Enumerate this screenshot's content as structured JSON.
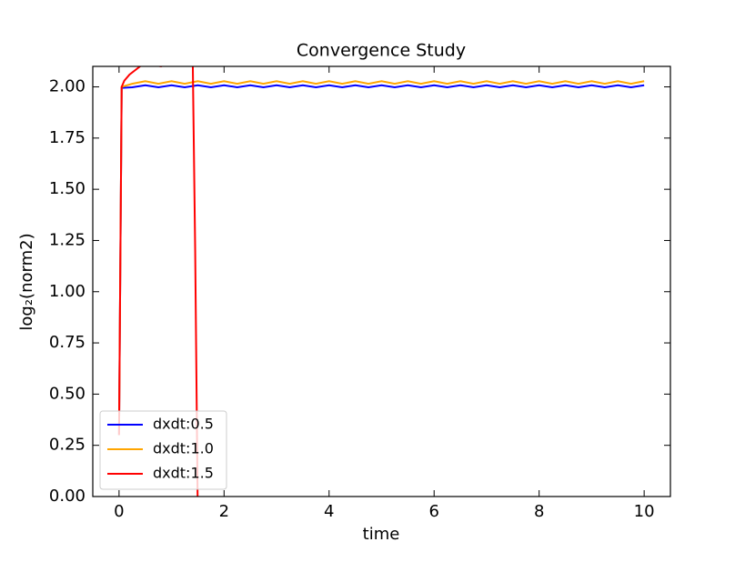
{
  "chart_data": {
    "type": "line",
    "title": "Convergence Study",
    "xlabel": "time",
    "ylabel": "log₂(norm2)",
    "xlim": [
      -0.5,
      10.5
    ],
    "ylim": [
      0,
      2.1
    ],
    "xticks": [
      0,
      2,
      4,
      6,
      8,
      10
    ],
    "yticks": [
      {
        "value": 0,
        "label": "0.00"
      },
      {
        "value": 0.25,
        "label": "0.25"
      },
      {
        "value": 0.5,
        "label": "0.50"
      },
      {
        "value": 0.75,
        "label": "0.75"
      },
      {
        "value": 1,
        "label": "1.00"
      },
      {
        "value": 1.25,
        "label": "1.25"
      },
      {
        "value": 1.5,
        "label": "1.50"
      },
      {
        "value": 1.75,
        "label": "1.75"
      },
      {
        "value": 2,
        "label": "2.00"
      }
    ],
    "legend": "lower left",
    "series": [
      {
        "name": "dxdt:0.5",
        "color": "#0000ff",
        "x": [
          0,
          0.05,
          0.25,
          0.5,
          0.75,
          1,
          1.25,
          1.5,
          1.75,
          2,
          2.25,
          2.5,
          2.75,
          3,
          3.25,
          3.5,
          3.75,
          4,
          4.25,
          4.5,
          4.75,
          5,
          5.25,
          5.5,
          5.75,
          6,
          6.25,
          6.5,
          6.75,
          7,
          7.25,
          7.5,
          7.75,
          8,
          8.25,
          8.5,
          8.75,
          9,
          9.25,
          9.5,
          9.75,
          10
        ],
        "values": [
          0.3,
          1.995,
          1.998,
          2.008,
          1.998,
          2.008,
          1.998,
          2.008,
          1.998,
          2.008,
          1.998,
          2.008,
          1.998,
          2.008,
          1.998,
          2.008,
          1.998,
          2.008,
          1.998,
          2.008,
          1.998,
          2.008,
          1.998,
          2.008,
          1.998,
          2.008,
          1.998,
          2.008,
          1.998,
          2.008,
          1.998,
          2.008,
          1.998,
          2.008,
          1.998,
          2.008,
          1.998,
          2.008,
          1.998,
          2.008,
          1.998,
          2.008
        ]
      },
      {
        "name": "dxdt:1.0",
        "color": "#ffa500",
        "x": [
          0,
          0.05,
          0.25,
          0.5,
          0.75,
          1,
          1.25,
          1.5,
          1.75,
          2,
          2.25,
          2.5,
          2.75,
          3,
          3.25,
          3.5,
          3.75,
          4,
          4.25,
          4.5,
          4.75,
          5,
          5.25,
          5.5,
          5.75,
          6,
          6.25,
          6.5,
          6.75,
          7,
          7.25,
          7.5,
          7.75,
          8,
          8.25,
          8.5,
          8.75,
          9,
          9.25,
          9.5,
          9.75,
          10
        ],
        "values": [
          0.3,
          2.0,
          2.015,
          2.028,
          2.015,
          2.028,
          2.015,
          2.028,
          2.015,
          2.028,
          2.015,
          2.028,
          2.015,
          2.028,
          2.015,
          2.028,
          2.015,
          2.028,
          2.015,
          2.028,
          2.015,
          2.028,
          2.015,
          2.028,
          2.015,
          2.028,
          2.015,
          2.028,
          2.015,
          2.028,
          2.015,
          2.028,
          2.015,
          2.028,
          2.015,
          2.028,
          2.015,
          2.028,
          2.015,
          2.028,
          2.015,
          2.028
        ]
      },
      {
        "name": "dxdt:1.5",
        "color": "#ff0000",
        "x": [
          0,
          0.05,
          0.1,
          0.2,
          0.3,
          0.5,
          0.7,
          0.8,
          0.9,
          1.0,
          1.2,
          1.4,
          1.45,
          1.5
        ],
        "values": [
          0.3,
          2.0,
          2.03,
          2.06,
          2.08,
          2.12,
          2.105,
          2.1,
          2.11,
          2.14,
          2.2,
          2.2,
          1.2,
          -0.1
        ]
      }
    ]
  }
}
